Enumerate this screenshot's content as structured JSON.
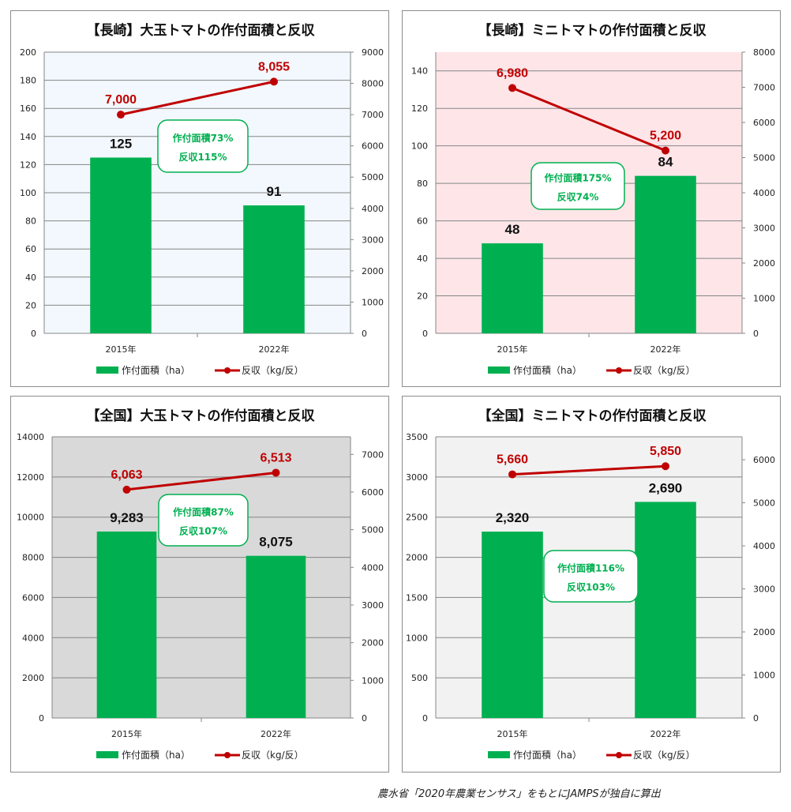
{
  "source_note": "農水省「2020年農業センサス」をもとにJAMPSが独自に算出",
  "colors": {
    "bar": "#00b050",
    "line": "#c00000",
    "grid": "#868686",
    "callout_text": "#00b050"
  },
  "chart_data": [
    {
      "id": "nagasaki-large",
      "type": "bar+line",
      "title": "【長崎】大玉トマトの作付面積と反収",
      "plot_bg": "#f2f8fd",
      "categories": [
        "2015年",
        "2022年"
      ],
      "series": [
        {
          "name": "作付面積（ha）",
          "kind": "bar",
          "axis": "left",
          "values": [
            125,
            91
          ],
          "labels": [
            "125",
            "91"
          ]
        },
        {
          "name": "反収（kg/反）",
          "kind": "line",
          "axis": "right",
          "values": [
            7000,
            8055
          ],
          "labels": [
            "7,000",
            "8,055"
          ]
        }
      ],
      "left_axis": {
        "min": 0,
        "max": 200,
        "step": 20
      },
      "right_axis": {
        "min": 0,
        "max": 9000,
        "step": 1000
      },
      "callout": [
        "作付面積73%",
        "反収115%"
      ],
      "legend": "bottom"
    },
    {
      "id": "nagasaki-mini",
      "type": "bar+line",
      "title": "【長崎】ミニトマトの作付面積と反収",
      "plot_bg": "#fde5e8",
      "categories": [
        "2015年",
        "2022年"
      ],
      "series": [
        {
          "name": "作付面積（ha）",
          "kind": "bar",
          "axis": "left",
          "values": [
            48,
            84
          ],
          "labels": [
            "48",
            "84"
          ]
        },
        {
          "name": "反収（kg/反）",
          "kind": "line",
          "axis": "right",
          "values": [
            6980,
            5200
          ],
          "labels": [
            "6,980",
            "5,200"
          ]
        }
      ],
      "left_axis": {
        "min": 0,
        "max": 150,
        "step": 20,
        "tick_max": 140
      },
      "right_axis": {
        "min": 0,
        "max": 8000,
        "step": 1000
      },
      "callout": [
        "作付面積175%",
        "反収74%"
      ],
      "legend": "bottom"
    },
    {
      "id": "national-large",
      "type": "bar+line",
      "title": "【全国】大玉トマトの作付面積と反収",
      "plot_bg": "#d9d9d9",
      "categories": [
        "2015年",
        "2022年"
      ],
      "series": [
        {
          "name": "作付面積（ha）",
          "kind": "bar",
          "axis": "left",
          "values": [
            9283,
            8075
          ],
          "labels": [
            "9,283",
            "8,075"
          ]
        },
        {
          "name": "反収（kg/反）",
          "kind": "line",
          "axis": "right",
          "values": [
            6063,
            6513
          ],
          "labels": [
            "6,063",
            "6,513"
          ]
        }
      ],
      "left_axis": {
        "min": 0,
        "max": 14000,
        "step": 2000
      },
      "right_axis": {
        "min": 0,
        "max": 7466.7,
        "step": 1000,
        "tick_max": 7000
      },
      "callout": [
        "作付面積87%",
        "反収107%"
      ],
      "legend": "bottom"
    },
    {
      "id": "national-mini",
      "type": "bar+line",
      "title": "【全国】ミニトマトの作付面積と反収",
      "plot_bg": "#f2f2f2",
      "categories": [
        "2015年",
        "2022年"
      ],
      "series": [
        {
          "name": "作付面積（ha）",
          "kind": "bar",
          "axis": "left",
          "values": [
            2320,
            2690
          ],
          "labels": [
            "2,320",
            "2,690"
          ]
        },
        {
          "name": "反収（kg/反）",
          "kind": "line",
          "axis": "right",
          "values": [
            5660,
            5850
          ],
          "labels": [
            "5,660",
            "5,850"
          ]
        }
      ],
      "left_axis": {
        "min": 0,
        "max": 3500,
        "step": 500
      },
      "right_axis": {
        "min": 0,
        "max": 6533.3,
        "step": 1000,
        "tick_max": 6000
      },
      "callout": [
        "作付面積116%",
        "反収103%"
      ],
      "legend": "bottom"
    }
  ]
}
